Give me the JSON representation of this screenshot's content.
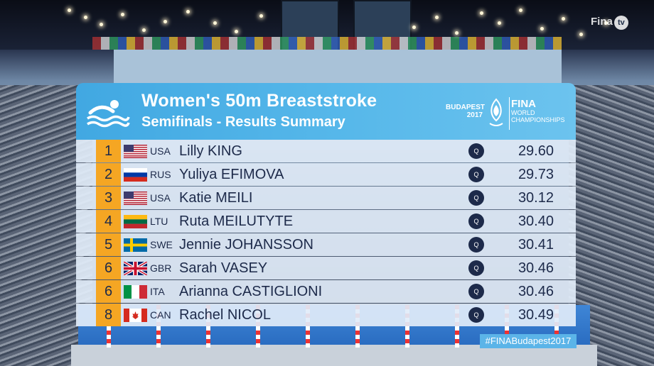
{
  "event": {
    "title": "Women's 50m Breaststroke",
    "subtitle": "Semifinals - Results Summary"
  },
  "branding": {
    "city": "BUDAPEST",
    "year": "2017",
    "fina": "FINA",
    "world": "WORLD",
    "championships": "CHAMPIONSHIPS",
    "hashtag": "#FINABudapest2017",
    "tv_text": "Fina",
    "tv_suffix": "tv"
  },
  "results": [
    {
      "rank": "1",
      "flag": "usa-flag-icon",
      "code": "USA",
      "name": "Lilly KING",
      "qualifier": "Q",
      "time": "29.60"
    },
    {
      "rank": "2",
      "flag": "russia-flag-icon",
      "code": "RUS",
      "name": "Yuliya EFIMOVA",
      "qualifier": "Q",
      "time": "29.73"
    },
    {
      "rank": "3",
      "flag": "usa-flag-icon",
      "code": "USA",
      "name": "Katie MEILI",
      "qualifier": "Q",
      "time": "30.12"
    },
    {
      "rank": "4",
      "flag": "lithuania-flag-icon",
      "code": "LTU",
      "name": "Ruta MEILUTYTE",
      "qualifier": "Q",
      "time": "30.40"
    },
    {
      "rank": "5",
      "flag": "sweden-flag-icon",
      "code": "SWE",
      "name": "Jennie JOHANSSON",
      "qualifier": "Q",
      "time": "30.41"
    },
    {
      "rank": "6",
      "flag": "uk-flag-icon",
      "code": "GBR",
      "name": "Sarah VASEY",
      "qualifier": "Q",
      "time": "30.46"
    },
    {
      "rank": "6",
      "flag": "italy-flag-icon",
      "code": "ITA",
      "name": "Arianna CASTIGLIONI",
      "qualifier": "Q",
      "time": "30.46"
    },
    {
      "rank": "8",
      "flag": "canada-flag-icon",
      "code": "CAN",
      "name": "Rachel NICOL",
      "qualifier": "Q",
      "time": "30.49"
    }
  ],
  "colors": {
    "header_blue": "#41a8e2",
    "rank_orange": "#f5a623",
    "text_navy": "#1d2a4a",
    "row_bg": "#e1ecf8"
  }
}
